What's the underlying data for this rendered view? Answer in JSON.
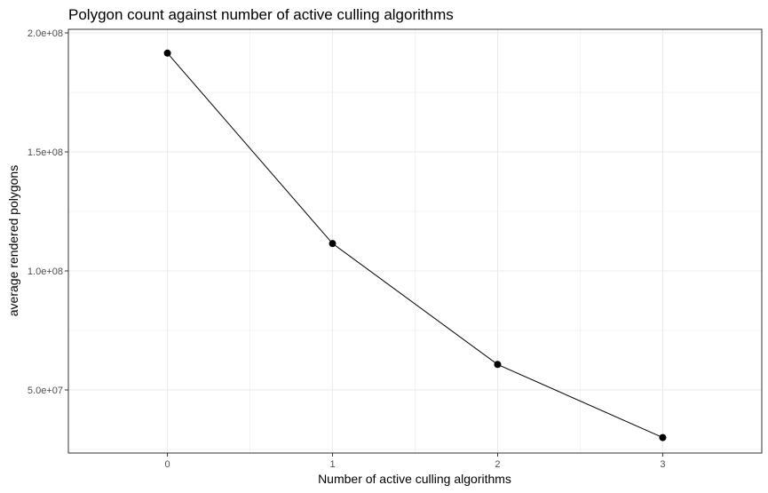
{
  "chart_data": {
    "type": "line",
    "title": "Polygon count against number of active culling algorithms",
    "xlabel": "Number of active culling algorithms",
    "ylabel": "average rendered polygons",
    "x": [
      0,
      1,
      2,
      3
    ],
    "values": [
      191500000,
      111500000,
      60700000,
      30000000
    ],
    "xlim": [
      -0.6,
      3.6
    ],
    "ylim": [
      23500000,
      201500000
    ],
    "xticks": [
      0,
      1,
      2,
      3
    ],
    "xtick_labels": [
      "0",
      "1",
      "2",
      "3"
    ],
    "yticks": [
      50000000,
      100000000,
      150000000,
      200000000
    ],
    "ytick_labels": [
      "5.0e+07",
      "1.0e+08",
      "1.5e+08",
      "2.0e+08"
    ],
    "grid": true,
    "colors": {
      "line": "#000000",
      "point": "#000000",
      "grid": "#ebebeb",
      "panel_border": "#333333"
    }
  }
}
